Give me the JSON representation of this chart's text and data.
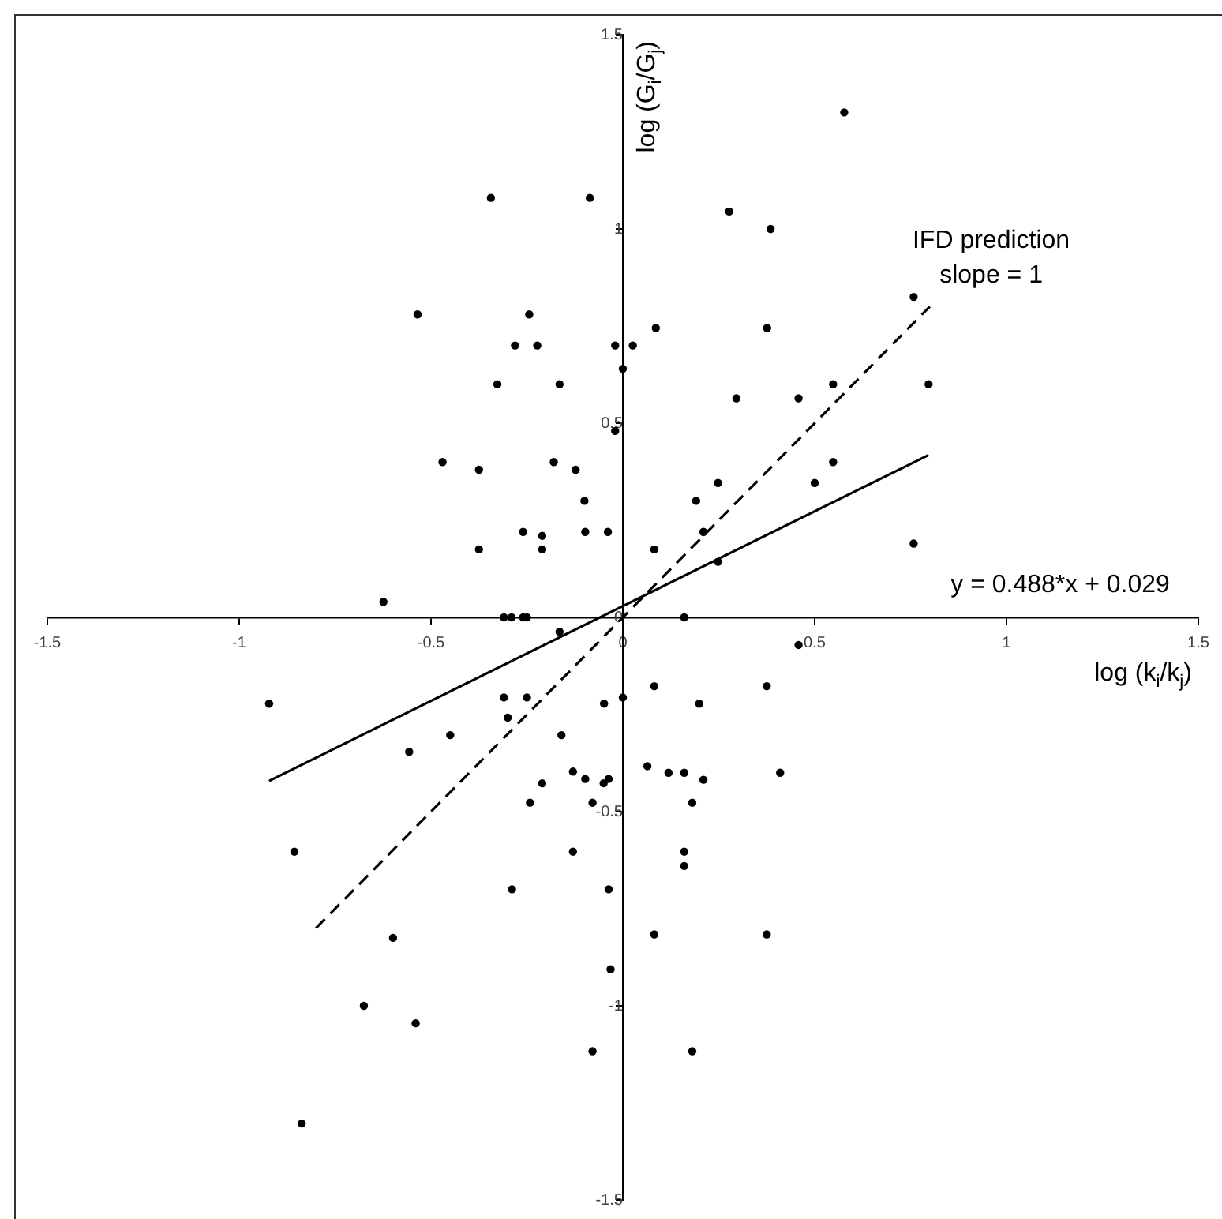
{
  "chart_data": {
    "type": "scatter",
    "xlabel": "log (k$_{i}$/k$_{j}$)",
    "ylabel": "log (G$_{i}$/G$_{j}$)",
    "annotations": [
      "IFD prediction\nslope = 1",
      "y = 0.488*x + 0.029"
    ],
    "xlim": [
      -1.5,
      1.5
    ],
    "ylim": [
      -1.5,
      1.5
    ],
    "xticks": [
      -1.5,
      -1,
      -0.5,
      0,
      0.5,
      1,
      1.5
    ],
    "yticks": [
      -1.5,
      -1,
      -0.5,
      0,
      0.5,
      1,
      1.5
    ],
    "grid": false,
    "legend": false,
    "marker": "circle",
    "series": [
      {
        "color": "#000000",
        "x": [
          -0.344,
          -0.086,
          -0.535,
          -0.244,
          -0.281,
          -0.223,
          -0.02,
          0.026,
          0,
          -0.327,
          -0.165,
          -0.02,
          -0.47,
          -0.375,
          -0.18,
          -0.123,
          -0.1,
          -0.26,
          -0.21,
          -0.098,
          -0.039,
          -0.375,
          -0.21,
          -0.624,
          -0.31,
          -0.29,
          -0.26,
          -0.25,
          0.577,
          0.277,
          0.385,
          0.086,
          0.376,
          0.758,
          0.296,
          0.458,
          0.548,
          0.797,
          0.248,
          0.548,
          0.5,
          0.191,
          0.21,
          0.082,
          0.248,
          0.758,
          0.16,
          -0.165,
          -0.922,
          -0.31,
          -0.25,
          -0.3,
          -0.049,
          0,
          -0.45,
          -0.16,
          -0.557,
          -0.13,
          -0.098,
          -0.05,
          -0.037,
          -0.21,
          -0.242,
          -0.079,
          -0.856,
          -0.13,
          -0.289,
          -0.037,
          -0.599,
          -0.032,
          -0.675,
          -0.54,
          -0.079,
          -0.837,
          0.458,
          0.082,
          0.375,
          0.199,
          0.064,
          0.119,
          0.16,
          0.21,
          0.41,
          0.181,
          0.16,
          0.16,
          0.082,
          0.375,
          0.181
        ],
        "values": [
          1.08,
          1.08,
          0.78,
          0.78,
          0.7,
          0.7,
          0.7,
          0.7,
          0.64,
          0.6,
          0.6,
          0.48,
          0.4,
          0.38,
          0.4,
          0.38,
          0.3,
          0.22,
          0.21,
          0.22,
          0.22,
          0.175,
          0.175,
          0.04,
          0,
          0,
          0,
          0,
          1.3,
          1.045,
          1,
          0.745,
          0.745,
          0.825,
          0.564,
          0.564,
          0.6,
          0.6,
          0.346,
          0.4,
          0.346,
          0.3,
          0.22,
          0.175,
          0.143,
          0.19,
          0,
          -0.037,
          -0.222,
          -0.206,
          -0.206,
          -0.258,
          -0.222,
          -0.206,
          -0.303,
          -0.303,
          -0.346,
          -0.397,
          -0.416,
          -0.427,
          -0.416,
          -0.427,
          -0.477,
          -0.477,
          -0.603,
          -0.603,
          -0.7,
          -0.7,
          -0.825,
          -0.906,
          -1,
          -1.045,
          -1.117,
          -1.303,
          -0.071,
          -0.177,
          -0.177,
          -0.222,
          -0.383,
          -0.4,
          -0.4,
          -0.418,
          -0.4,
          -0.477,
          -0.603,
          -0.64,
          -0.816,
          -0.816,
          -1.117
        ]
      },
      {
        "type": "line",
        "color": "#000000",
        "line_style": "solid",
        "marker": "none",
        "x": [
          -0.922,
          0.797
        ],
        "values": [
          -0.421,
          0.418
        ]
      },
      {
        "type": "line",
        "color": "#000000",
        "line_style": "dashed",
        "marker": "none",
        "x": [
          -0.8,
          0.8
        ],
        "values": [
          -0.8,
          0.8
        ]
      }
    ]
  }
}
